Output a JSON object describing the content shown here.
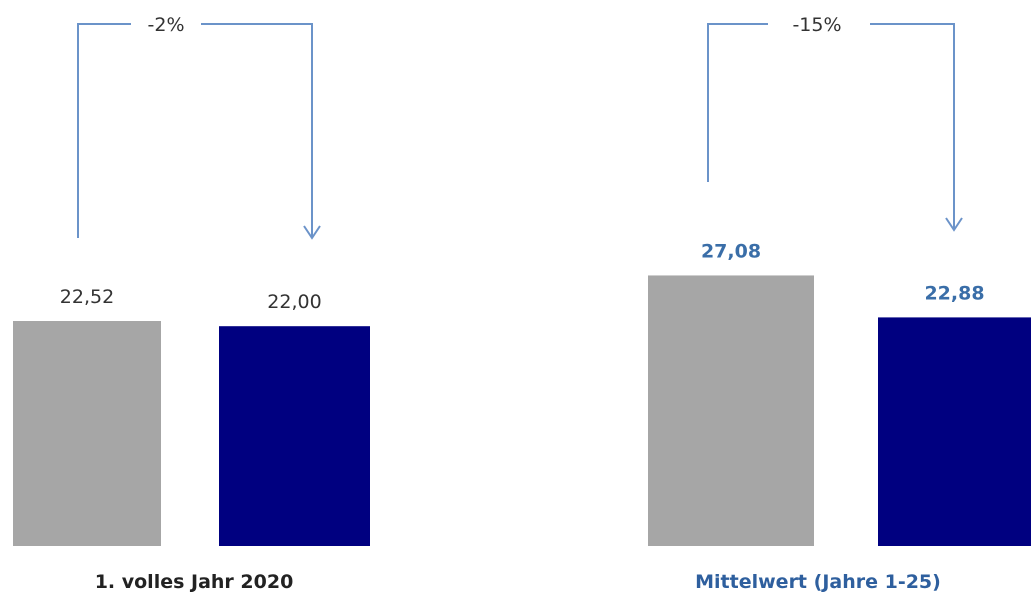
{
  "chart_data": [
    {
      "type": "bar",
      "categories": [
        "1. volles Jahr 2020"
      ],
      "series": [
        {
          "values": [
            22.52
          ],
          "value_label": "22,52",
          "color": "#a6a6a6"
        },
        {
          "values": [
            22.0
          ],
          "value_label": "22,00",
          "color": "#000080"
        }
      ],
      "change_label": "-2%",
      "group_label": "1. volles Jahr 2020",
      "group_label_color": "#222222",
      "value_label_style": "plain",
      "value_label_color": "#333333",
      "arrow_color": "#6b93c9"
    },
    {
      "type": "bar",
      "categories": [
        "Mittelwert (Jahre 1-25)"
      ],
      "series": [
        {
          "values": [
            27.08
          ],
          "value_label": "27,08",
          "color": "#a6a6a6"
        },
        {
          "values": [
            22.88
          ],
          "value_label": "22,88",
          "color": "#000080"
        }
      ],
      "change_label": "-15%",
      "group_label": "Mittelwert (Jahre 1-25)",
      "group_label_color": "#2e5f9e",
      "value_label_style": "bold",
      "value_label_color": "#3a6ea8",
      "arrow_color": "#6b93c9"
    }
  ]
}
